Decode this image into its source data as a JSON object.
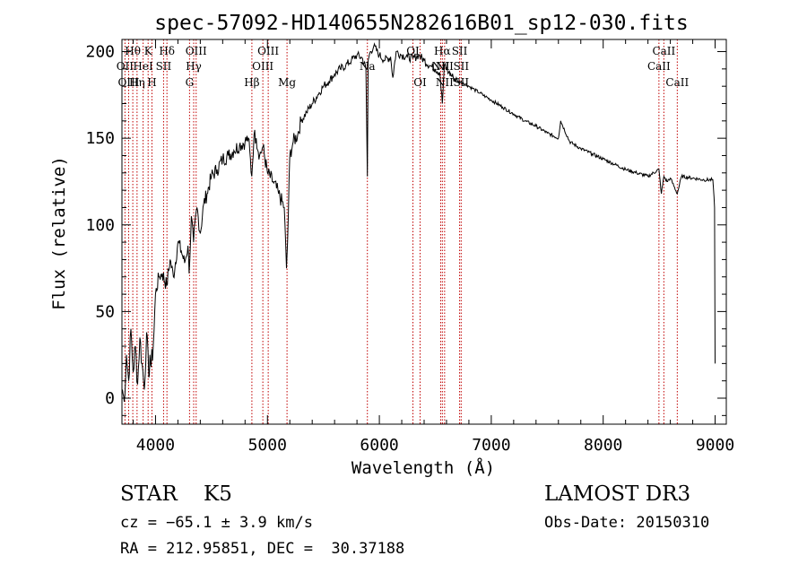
{
  "chart_data": {
    "type": "line",
    "title": "spec-57092-HD140655N282616B01_sp12-030.fits",
    "xlabel": "Wavelength (Å)",
    "ylabel": "Flux (relative)",
    "xlim": [
      3700,
      9100
    ],
    "ylim": [
      -15,
      207
    ],
    "x_ticks": [
      4000,
      5000,
      6000,
      7000,
      8000,
      9000
    ],
    "x_tick_labels": [
      "4000",
      "5000",
      "6000",
      "7000",
      "8000",
      "9000"
    ],
    "y_ticks": [
      0,
      50,
      100,
      150,
      200
    ],
    "y_tick_labels": [
      "0",
      "50",
      "100",
      "150",
      "200"
    ],
    "grid": false,
    "series": [
      {
        "x": [
          3705,
          3720,
          3740,
          3760,
          3780,
          3800,
          3820,
          3840,
          3860,
          3880,
          3900,
          3920,
          3940,
          3950,
          3960,
          3980,
          4000,
          4030,
          4060,
          4100,
          4130,
          4160,
          4200,
          4230,
          4260,
          4290,
          4300,
          4320,
          4340,
          4370,
          4400,
          4430,
          4460,
          4500,
          4550,
          4600,
          4650,
          4700,
          4750,
          4800,
          4830,
          4860,
          4880,
          4900,
          4930,
          4960,
          5000,
          5050,
          5100,
          5150,
          5170,
          5180,
          5200,
          5230,
          5270,
          5300,
          5350,
          5400,
          5450,
          5500,
          5550,
          5600,
          5650,
          5700,
          5750,
          5800,
          5850,
          5880,
          5893,
          5900,
          5920,
          5950,
          6000,
          6050,
          6100,
          6120,
          6150,
          6200,
          6250,
          6300,
          6350,
          6400,
          6450,
          6500,
          6540,
          6563,
          6580,
          6620,
          6660,
          6700,
          6750,
          6800,
          6850,
          6900,
          6950,
          7000,
          7100,
          7200,
          7300,
          7400,
          7500,
          7600,
          7620,
          7700,
          7800,
          7900,
          8000,
          8100,
          8200,
          8300,
          8400,
          8498,
          8520,
          8542,
          8570,
          8600,
          8662,
          8700,
          8800,
          8900,
          8980,
          8995,
          9000
        ],
        "y": [
          5,
          -2,
          25,
          10,
          40,
          15,
          30,
          8,
          35,
          20,
          5,
          38,
          12,
          25,
          18,
          30,
          60,
          70,
          72,
          65,
          80,
          70,
          90,
          85,
          78,
          88,
          72,
          105,
          90,
          110,
          95,
          112,
          118,
          128,
          132,
          138,
          140,
          143,
          146,
          148,
          150,
          128,
          152,
          150,
          140,
          145,
          130,
          125,
          118,
          110,
          75,
          90,
          140,
          148,
          152,
          160,
          165,
          170,
          175,
          180,
          183,
          187,
          190,
          192,
          195,
          198,
          196,
          190,
          128,
          195,
          200,
          203,
          198,
          195,
          197,
          185,
          200,
          198,
          197,
          196,
          198,
          195,
          192,
          190,
          188,
          170,
          192,
          188,
          185,
          183,
          182,
          180,
          178,
          176,
          174,
          172,
          168,
          164,
          160,
          157,
          153,
          150,
          160,
          148,
          144,
          141,
          138,
          135,
          132,
          130,
          128,
          132,
          118,
          128,
          125,
          127,
          118,
          128,
          127,
          126,
          126,
          110,
          20
        ]
      }
    ],
    "line_labels": [
      {
        "text": "Hθ",
        "x": 3797,
        "row": 1
      },
      {
        "text": "K",
        "x": 3934,
        "row": 1
      },
      {
        "text": "Hδ",
        "x": 4102,
        "row": 1
      },
      {
        "text": "OIII",
        "x": 4363,
        "row": 1
      },
      {
        "text": "OIII",
        "x": 5007,
        "row": 1
      },
      {
        "text": "OI",
        "x": 6300,
        "row": 1
      },
      {
        "text": "Hα",
        "x": 6563,
        "row": 1
      },
      {
        "text": "SII",
        "x": 6717,
        "row": 1
      },
      {
        "text": "CaII",
        "x": 8542,
        "row": 1
      },
      {
        "text": "OII",
        "x": 3727,
        "row": 2
      },
      {
        "text": "HeI",
        "x": 3889,
        "row": 2
      },
      {
        "text": "SII",
        "x": 4072,
        "row": 2
      },
      {
        "text": "Hγ",
        "x": 4341,
        "row": 2
      },
      {
        "text": "OIII",
        "x": 4959,
        "row": 2
      },
      {
        "text": "Na",
        "x": 5893,
        "row": 2
      },
      {
        "text": "NII",
        "x": 6548,
        "row": 2
      },
      {
        "text": "NII",
        "x": 6583,
        "row": 2
      },
      {
        "text": "SII",
        "x": 6731,
        "row": 2
      },
      {
        "text": "CaII",
        "x": 8498,
        "row": 2
      },
      {
        "text": "OIII",
        "x": 3760,
        "row": 3
      },
      {
        "text": "Hη",
        "x": 3835,
        "row": 3
      },
      {
        "text": "H",
        "x": 3968,
        "row": 3
      },
      {
        "text": "G",
        "x": 4304,
        "row": 3
      },
      {
        "text": "Hβ",
        "x": 4861,
        "row": 3
      },
      {
        "text": "Mg",
        "x": 5175,
        "row": 3
      },
      {
        "text": "OI",
        "x": 6364,
        "row": 3
      },
      {
        "text": "NII",
        "x": 6583,
        "row": 3
      },
      {
        "text": "SII",
        "x": 6731,
        "row": 3
      },
      {
        "text": "CaII",
        "x": 8662,
        "row": 3
      }
    ],
    "marker_lines_x": [
      3727,
      3760,
      3797,
      3835,
      3889,
      3934,
      3968,
      4072,
      4102,
      4304,
      4341,
      4363,
      4861,
      4959,
      5007,
      5175,
      5893,
      6300,
      6364,
      6548,
      6563,
      6583,
      6717,
      6731,
      8498,
      8542,
      8662
    ],
    "colors": {
      "spectrum": "#000000",
      "marker_lines": "#c00000",
      "axes": "#000000"
    }
  },
  "info": {
    "class_line": "STAR    K5",
    "cz_line": "cz = −65.1 ± 3.9 km/s",
    "radec_line": "RA = 212.95851, DEC =  30.37188",
    "survey": "LAMOST DR3",
    "obs_date": "Obs-Date: 20150310"
  }
}
